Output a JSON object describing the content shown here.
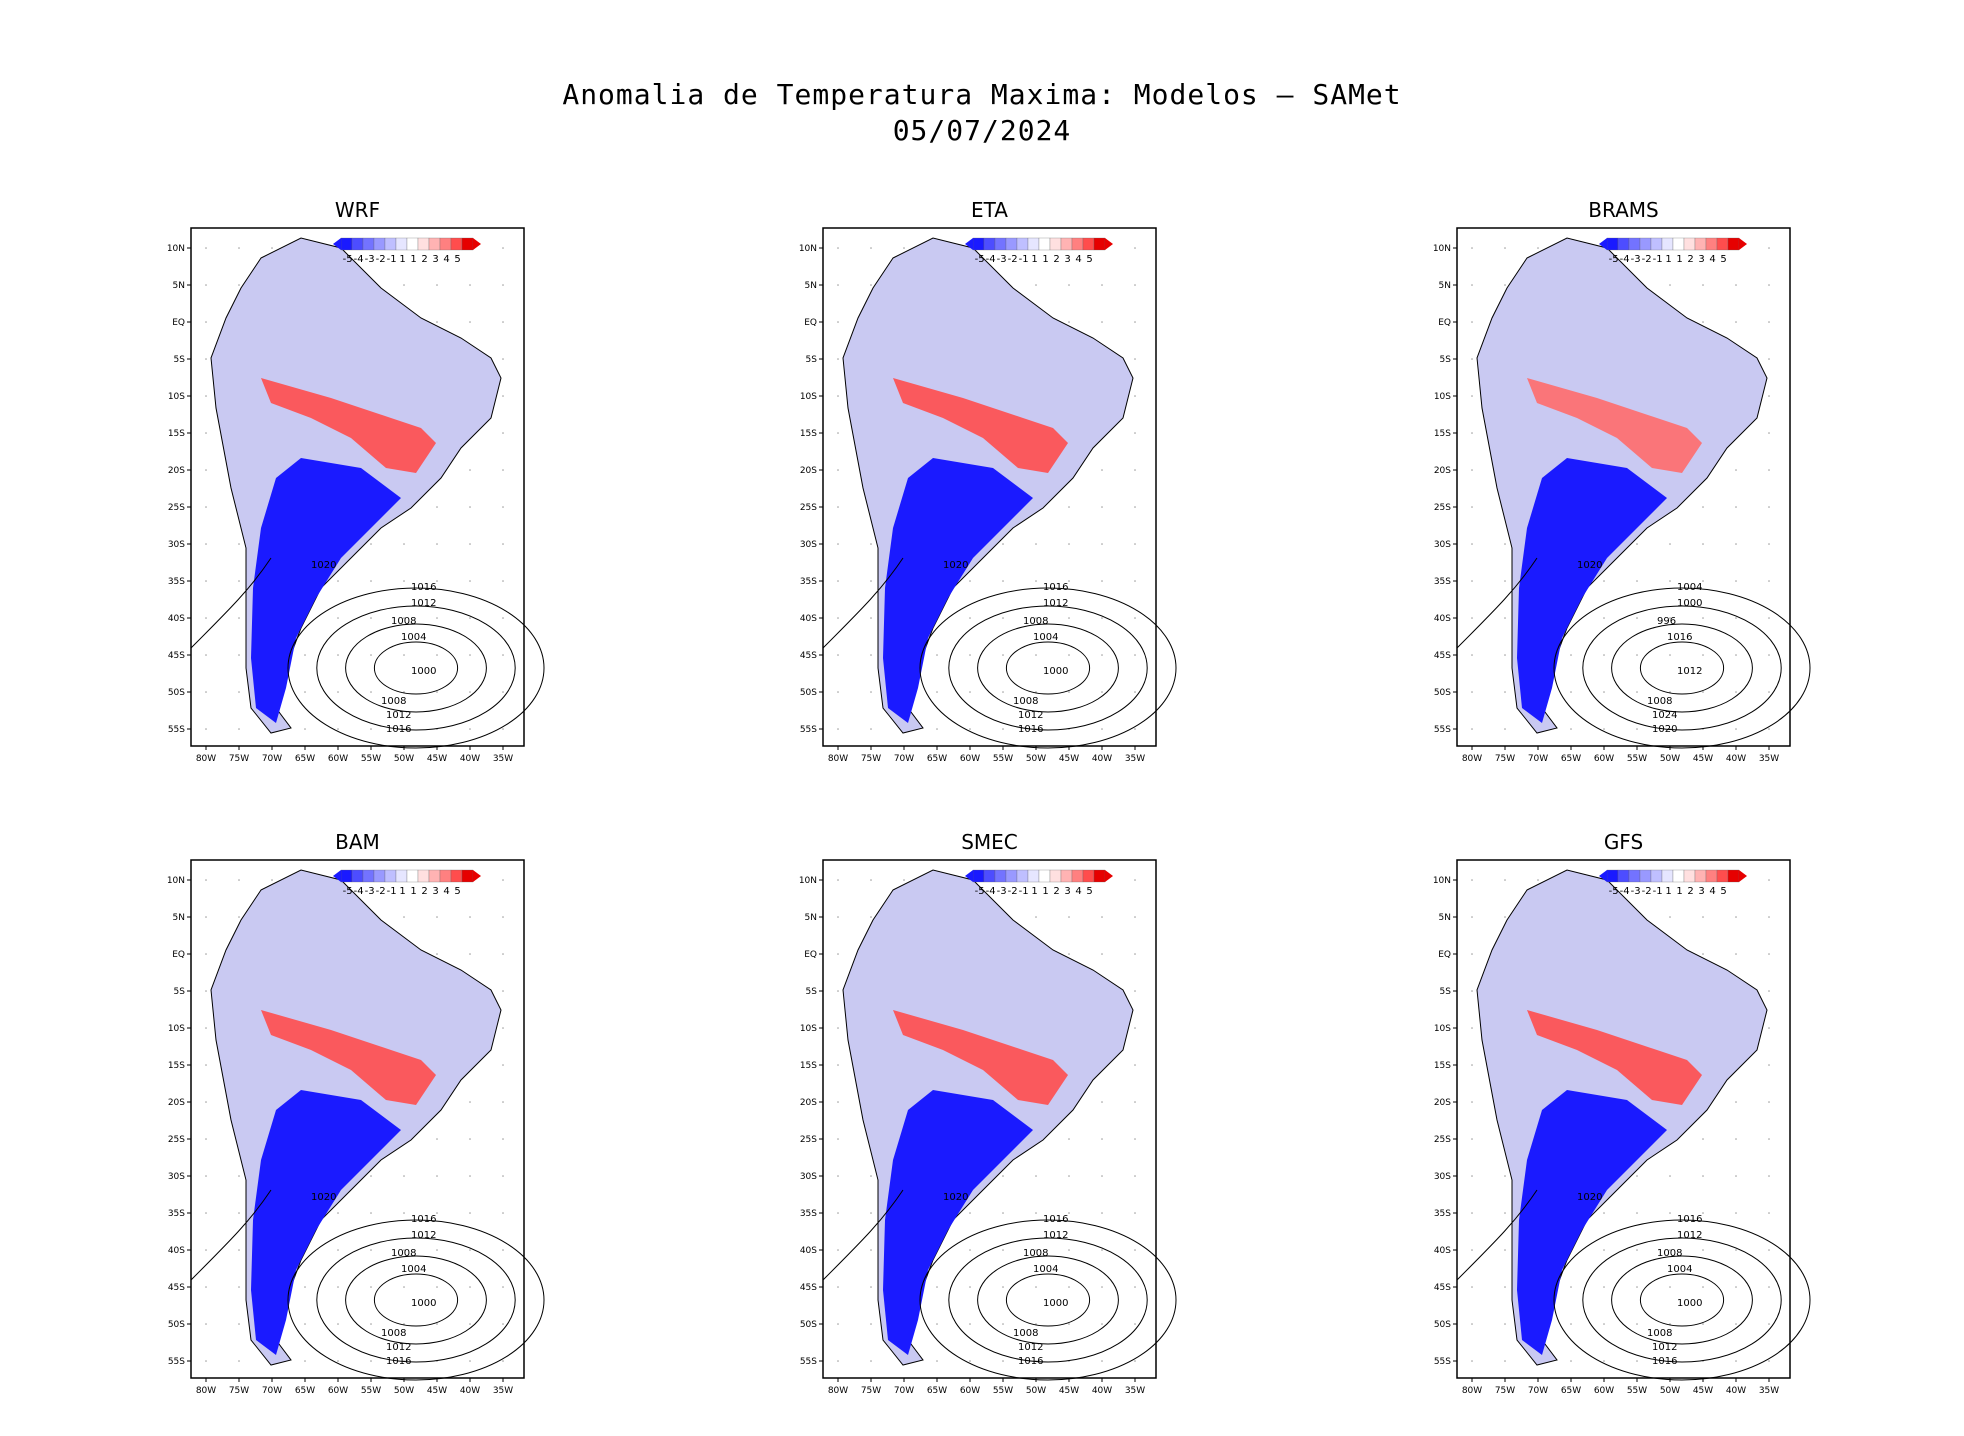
{
  "title": {
    "line1": "Anomalia de Temperatura Maxima: Modelos – SAMet",
    "line2": "05/07/2024"
  },
  "colorbar": {
    "labels": [
      "-5",
      "-4",
      "-3",
      "-2",
      "-1",
      "1",
      "1",
      "2",
      "3",
      "4",
      "5"
    ],
    "colors": [
      "#1a1aff",
      "#4d4dff",
      "#7373ff",
      "#9999ff",
      "#bfbfff",
      "#e6e6ff",
      "#ffffff",
      "#ffe0e0",
      "#ffb3b3",
      "#ff8080",
      "#ff4d4d",
      "#e60000"
    ]
  },
  "axes": {
    "lat_labels": [
      "10N",
      "5N",
      "EQ",
      "5S",
      "10S",
      "15S",
      "20S",
      "25S",
      "30S",
      "35S",
      "40S",
      "45S",
      "50S",
      "55S"
    ],
    "lon_labels": [
      "80W",
      "75W",
      "70W",
      "65W",
      "60W",
      "55W",
      "50W",
      "45W",
      "40W",
      "35W"
    ]
  },
  "panels": [
    {
      "name": "WRF",
      "cold_label": "1020",
      "contours": [
        "1016",
        "1012",
        "1008",
        "1004",
        "1000",
        "1008",
        "1012",
        "1016"
      ]
    },
    {
      "name": "ETA",
      "cold_label": "1020",
      "contours": [
        "1016",
        "1012",
        "1008",
        "1004",
        "1000",
        "1008",
        "1012",
        "1016"
      ]
    },
    {
      "name": "BRAMS",
      "cold_label": "1020",
      "contours": [
        "1004",
        "1000",
        "996",
        "1016",
        "1012",
        "1008",
        "1024",
        "1020"
      ]
    },
    {
      "name": "BAM",
      "cold_label": "1020",
      "contours": [
        "1016",
        "1012",
        "1008",
        "1004",
        "1000",
        "1008",
        "1012",
        "1016"
      ]
    },
    {
      "name": "SMEC",
      "cold_label": "1020",
      "contours": [
        "1016",
        "1012",
        "1008",
        "1004",
        "1000",
        "1008",
        "1012",
        "1016"
      ]
    },
    {
      "name": "GFS",
      "cold_label": "1020",
      "contours": [
        "1016",
        "1012",
        "1008",
        "1004",
        "1000",
        "1008",
        "1012",
        "1016"
      ]
    }
  ]
}
